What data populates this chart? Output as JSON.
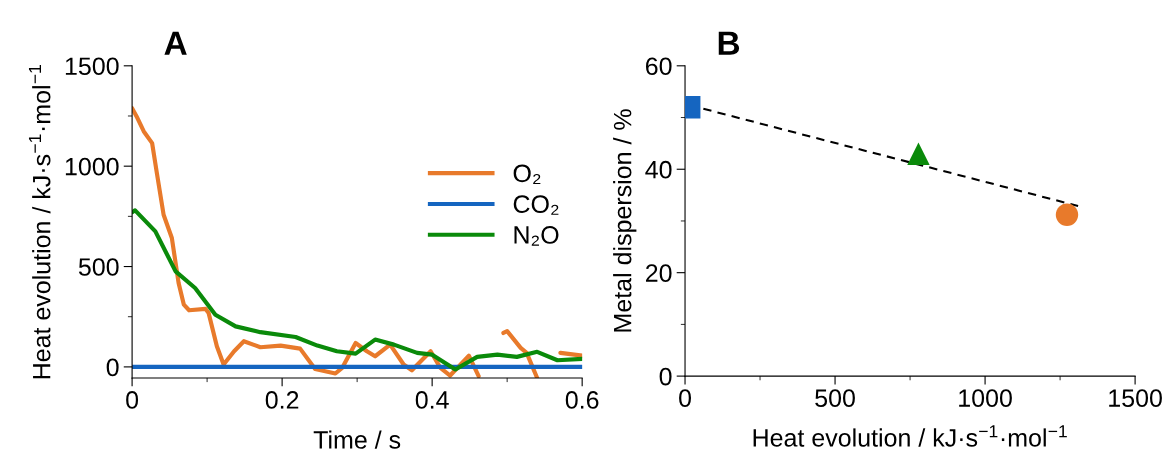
{
  "chart_data": [
    {
      "type": "line",
      "title": "A",
      "xlabel": "Time / s",
      "ylabel": "Heat evolution / kJ·s$^{−1}$·mol$^{−1}$",
      "xlim": [
        0,
        0.6
      ],
      "xticks": [
        0,
        {
          "value": 0.1,
          "label": null
        },
        0.2,
        {
          "value": 0.3,
          "label": null
        },
        0.4,
        {
          "value": 0.5,
          "label": null
        },
        0.6
      ],
      "ylim": [
        -55,
        1500
      ],
      "yticks": [
        0,
        {
          "value": 250,
          "label": null
        },
        500,
        {
          "value": 750,
          "label": null
        },
        1000,
        {
          "value": 1250,
          "label": null
        },
        1500
      ],
      "grid": false,
      "legend": "right",
      "marker": "none",
      "line_style": "solid",
      "series": [
        {
          "name": "O₂",
          "color": "#e87a2b",
          "x": [
            0,
            0.006,
            0.0156,
            0.0267,
            0.033,
            0.042,
            0.053,
            0.062,
            0.069,
            0.076,
            0.098,
            0.102,
            0.113,
            0.122,
            0.136,
            0.149,
            0.171,
            0.198,
            0.224,
            0.244,
            0.271,
            0.28,
            0.298,
            0.313,
            0.324,
            0.344,
            0.362,
            0.373,
            0.398,
            0.411,
            0.424,
            0.449,
            0.462,
            0.48,
            0.495,
            0.5,
            0.518,
            0.526,
            0.54,
            0.556,
            0.571,
            0.6
          ],
          "values": [
            1289,
            1248,
            1173,
            1115,
            966,
            758,
            642,
            418,
            310,
            282,
            289,
            269,
            103,
            12,
            78,
            128,
            98,
            106,
            91,
            -10,
            -33,
            -5,
            119,
            78,
            53,
            111,
            12,
            -17,
            78,
            -5,
            -43,
            56,
            -46,
            null,
            169,
            178,
            95,
            70,
            -55,
            null,
            70,
            56
          ]
        },
        {
          "name": "CO₂",
          "color": "#1565c0",
          "x": [
            0,
            0.6
          ],
          "values": [
            0,
            0
          ]
        },
        {
          "name": "N₂O",
          "color": "#0a8a0a",
          "x": [
            0,
            0.004,
            0.031,
            0.058,
            0.084,
            0.111,
            0.138,
            0.171,
            0.218,
            0.247,
            0.273,
            0.298,
            0.324,
            0.349,
            0.38,
            0.4,
            0.431,
            0.46,
            0.487,
            0.513,
            0.54,
            0.567,
            0.6
          ],
          "values": [
            770,
            780,
            675,
            476,
            393,
            260,
            202,
            173,
            149,
            106,
            78,
            66,
            136,
            111,
            70,
            61,
            -13,
            50,
            61,
            50,
            75,
            33,
            40
          ]
        }
      ]
    },
    {
      "type": "scatter",
      "title": "B",
      "xlabel": "Heat evolution / kJ·s$^{−1}$·mol$^{−1}$",
      "ylabel": "Metal dispersion / %",
      "xlim": [
        0,
        1500
      ],
      "xticks": [
        0,
        {
          "value": 250,
          "label": null
        },
        500,
        {
          "value": 750,
          "label": null
        },
        1000,
        {
          "value": 1250,
          "label": null
        },
        1500
      ],
      "ylim": [
        0,
        60
      ],
      "yticks": [
        0,
        {
          "value": 10,
          "label": null
        },
        20,
        {
          "value": 30,
          "label": null
        },
        40,
        {
          "value": 50,
          "label": null
        },
        60
      ],
      "grid": false,
      "legend": false,
      "series": [
        {
          "type": "line",
          "color": "#000000",
          "line_style": "dashed",
          "marker": "none",
          "x": [
            14,
            1310
          ],
          "values": [
            52.4,
            32.9
          ]
        },
        {
          "type": "scatter",
          "color": "#1565c0",
          "marker": "square",
          "x": [
            14
          ],
          "values": [
            52
          ]
        },
        {
          "type": "scatter",
          "color": "#0a8a0a",
          "marker": "triangle",
          "x": [
            778
          ],
          "values": [
            43
          ]
        },
        {
          "type": "scatter",
          "color": "#e87a2b",
          "marker": "circle",
          "x": [
            1273
          ],
          "values": [
            31.2
          ]
        }
      ]
    }
  ]
}
